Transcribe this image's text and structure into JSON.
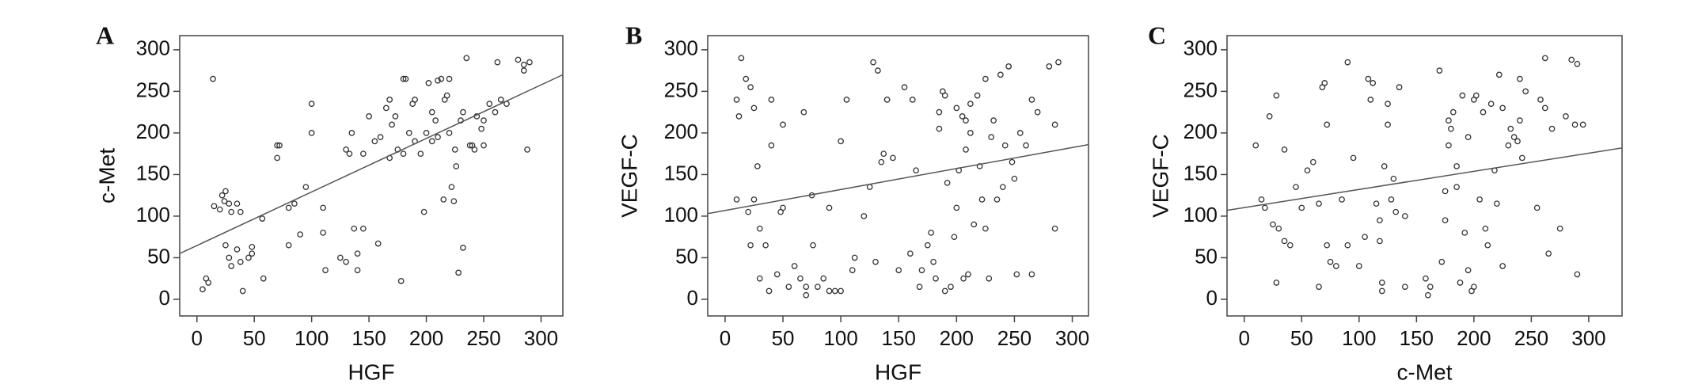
{
  "chart_data": [
    {
      "type": "scatter",
      "panel_label": "A",
      "x_label": "HGF",
      "y_label": "c-Met",
      "xlim": [
        -15,
        319
      ],
      "ylim": [
        -20,
        317
      ],
      "xticks": [
        0,
        50,
        100,
        150,
        200,
        250,
        300
      ],
      "yticks": [
        0,
        50,
        100,
        150,
        200,
        250,
        300
      ],
      "marker_color": "#333333",
      "line_color": "#555555",
      "x": [
        14,
        5,
        8,
        10,
        15,
        20,
        22,
        25,
        24,
        28,
        30,
        35,
        38,
        25,
        28,
        30,
        35,
        38,
        40,
        45,
        48,
        48,
        58,
        57,
        70,
        70,
        72,
        80,
        80,
        85,
        90,
        95,
        100,
        100,
        110,
        110,
        112,
        125,
        130,
        130,
        133,
        135,
        137,
        140,
        140,
        145,
        145,
        150,
        155,
        158,
        160,
        165,
        168,
        168,
        170,
        173,
        175,
        178,
        180,
        182,
        180,
        185,
        188,
        190,
        190,
        195,
        198,
        200,
        202,
        205,
        205,
        208,
        210,
        210,
        213,
        215,
        216,
        218,
        220,
        220,
        222,
        224,
        225,
        226,
        228,
        230,
        232,
        235,
        232,
        238,
        240,
        242,
        244,
        248,
        250,
        250,
        255,
        260,
        262,
        265,
        270,
        280,
        285,
        285,
        288,
        290
      ],
      "y": [
        265,
        12,
        25,
        20,
        112,
        108,
        125,
        130,
        118,
        115,
        105,
        115,
        105,
        65,
        50,
        40,
        60,
        45,
        10,
        50,
        55,
        63,
        25,
        97,
        185,
        170,
        185,
        110,
        65,
        115,
        78,
        135,
        200,
        235,
        110,
        80,
        35,
        50,
        45,
        180,
        175,
        200,
        85,
        55,
        35,
        175,
        85,
        220,
        190,
        67,
        195,
        230,
        240,
        170,
        210,
        220,
        180,
        22,
        265,
        265,
        175,
        200,
        235,
        240,
        190,
        175,
        105,
        200,
        260,
        190,
        225,
        215,
        263,
        195,
        265,
        120,
        240,
        245,
        265,
        200,
        135,
        118,
        180,
        160,
        32,
        215,
        62,
        290,
        225,
        185,
        185,
        180,
        220,
        205,
        185,
        215,
        235,
        225,
        285,
        240,
        235,
        288,
        282,
        275,
        180,
        285
      ],
      "trend_line": {
        "x": [
          -15,
          319
        ],
        "y": [
          55,
          270
        ]
      }
    },
    {
      "type": "scatter",
      "panel_label": "B",
      "x_label": "HGF",
      "y_label": "VEGF-C",
      "xlim": [
        -15,
        314
      ],
      "ylim": [
        -20,
        317
      ],
      "xticks": [
        0,
        50,
        100,
        150,
        200,
        250,
        300
      ],
      "yticks": [
        0,
        50,
        100,
        150,
        200,
        250,
        300
      ],
      "marker_color": "#333333",
      "line_color": "#555555",
      "x": [
        10,
        12,
        14,
        10,
        18,
        20,
        22,
        25,
        25,
        22,
        28,
        30,
        30,
        35,
        38,
        40,
        40,
        45,
        50,
        50,
        48,
        55,
        60,
        65,
        68,
        70,
        70,
        75,
        76,
        80,
        85,
        90,
        90,
        95,
        100,
        100,
        105,
        110,
        112,
        120,
        125,
        128,
        130,
        132,
        135,
        137,
        140,
        145,
        150,
        155,
        160,
        162,
        165,
        168,
        170,
        175,
        178,
        180,
        182,
        185,
        185,
        188,
        190,
        190,
        192,
        195,
        198,
        200,
        200,
        202,
        205,
        206,
        208,
        208,
        210,
        212,
        212,
        215,
        218,
        220,
        222,
        225,
        225,
        228,
        230,
        232,
        235,
        238,
        240,
        242,
        245,
        248,
        250,
        252,
        255,
        260,
        265,
        265,
        270,
        280,
        285,
        285,
        288
      ],
      "y": [
        120,
        220,
        290,
        240,
        265,
        105,
        255,
        120,
        230,
        65,
        160,
        85,
        25,
        65,
        10,
        240,
        185,
        30,
        210,
        110,
        105,
        15,
        40,
        25,
        225,
        15,
        5,
        125,
        65,
        15,
        25,
        110,
        10,
        10,
        10,
        190,
        240,
        35,
        50,
        100,
        135,
        285,
        45,
        275,
        165,
        175,
        240,
        170,
        35,
        255,
        55,
        240,
        155,
        15,
        35,
        65,
        80,
        45,
        25,
        205,
        225,
        250,
        10,
        245,
        140,
        15,
        75,
        230,
        110,
        155,
        220,
        25,
        180,
        215,
        30,
        235,
        200,
        90,
        245,
        160,
        120,
        85,
        265,
        25,
        195,
        215,
        120,
        270,
        135,
        185,
        280,
        165,
        145,
        30,
        200,
        185,
        240,
        30,
        225,
        280,
        85,
        210,
        285
      ],
      "trend_line": {
        "x": [
          -15,
          314
        ],
        "y": [
          103,
          186
        ]
      }
    },
    {
      "type": "scatter",
      "panel_label": "C",
      "x_label": "c-Met",
      "y_label": "VEGF-C",
      "xlim": [
        -15,
        329
      ],
      "ylim": [
        -20,
        317
      ],
      "xticks": [
        0,
        50,
        100,
        150,
        200,
        250,
        300
      ],
      "yticks": [
        0,
        50,
        100,
        150,
        200,
        250,
        300
      ],
      "marker_color": "#333333",
      "line_color": "#555555",
      "x": [
        10,
        15,
        18,
        22,
        25,
        28,
        28,
        30,
        35,
        35,
        40,
        45,
        50,
        55,
        60,
        65,
        65,
        68,
        70,
        72,
        72,
        75,
        80,
        85,
        90,
        90,
        95,
        100,
        105,
        108,
        110,
        112,
        115,
        118,
        118,
        120,
        120,
        122,
        125,
        125,
        128,
        130,
        132,
        135,
        140,
        140,
        158,
        160,
        162,
        170,
        172,
        175,
        175,
        178,
        178,
        180,
        182,
        185,
        185,
        188,
        190,
        192,
        195,
        195,
        198,
        200,
        200,
        202,
        205,
        208,
        210,
        212,
        215,
        218,
        220,
        222,
        225,
        225,
        230,
        232,
        235,
        238,
        240,
        240,
        242,
        245,
        255,
        258,
        262,
        262,
        265,
        268,
        275,
        280,
        285,
        288,
        290,
        290,
        295
      ],
      "y": [
        185,
        120,
        110,
        220,
        90,
        20,
        245,
        85,
        70,
        180,
        65,
        135,
        110,
        155,
        165,
        15,
        115,
        255,
        260,
        210,
        65,
        45,
        40,
        120,
        285,
        65,
        170,
        40,
        75,
        265,
        240,
        260,
        115,
        95,
        70,
        20,
        10,
        160,
        210,
        235,
        120,
        145,
        105,
        255,
        100,
        15,
        25,
        5,
        15,
        275,
        45,
        130,
        95,
        185,
        215,
        205,
        225,
        160,
        135,
        20,
        245,
        80,
        195,
        35,
        10,
        15,
        240,
        245,
        120,
        225,
        85,
        65,
        235,
        155,
        115,
        270,
        40,
        230,
        185,
        205,
        195,
        190,
        265,
        215,
        170,
        250,
        110,
        240,
        290,
        230,
        55,
        205,
        85,
        220,
        288,
        210,
        30,
        283,
        210
      ],
      "trend_line": {
        "x": [
          -15,
          329
        ],
        "y": [
          107,
          182
        ]
      }
    }
  ]
}
